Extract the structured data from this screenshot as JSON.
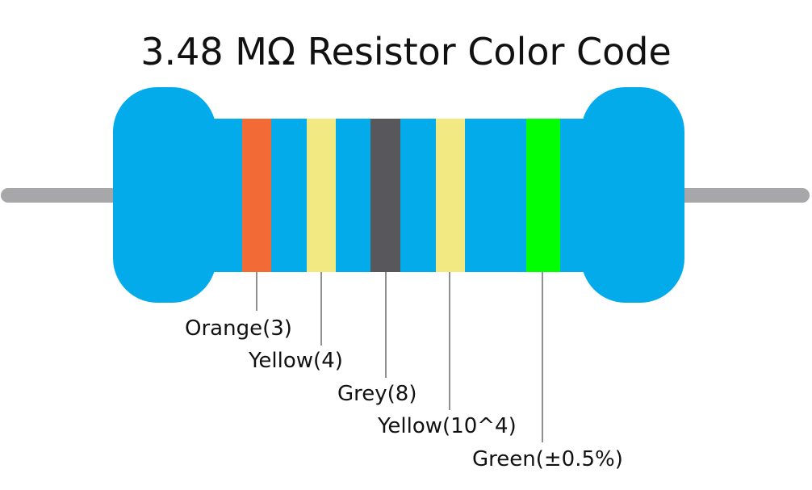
{
  "title": "3.48 MΩ Resistor Color Code",
  "bands": [
    {
      "label": "Orange(3)",
      "color": "#f26b36"
    },
    {
      "label": "Yellow(4)",
      "color": "#f2e982"
    },
    {
      "label": "Grey(8)",
      "color": "#58575b"
    },
    {
      "label": "Yellow(10^4)",
      "color": "#f2e982"
    },
    {
      "label": "Green(±0.5%)",
      "color": "#00ff00"
    }
  ]
}
